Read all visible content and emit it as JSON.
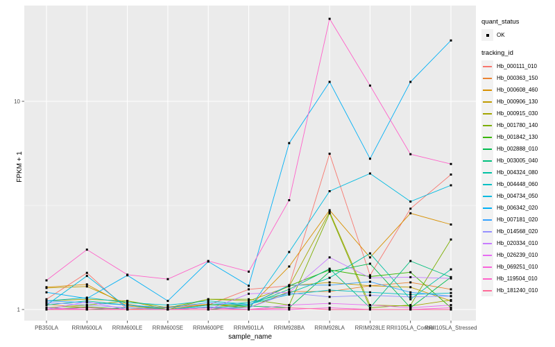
{
  "chart_data": {
    "type": "line",
    "title": "",
    "xlabel": "sample_name",
    "ylabel": "FPKM + 1",
    "y_scale": "log10",
    "y_ticks": [
      1,
      10
    ],
    "y_minor_ticks": [
      3.162
    ],
    "ylim": [
      0.885,
      28.9
    ],
    "grid": "on",
    "panel_bg": "#EBEBEB",
    "grid_color": "#FFFFFF",
    "tick_label_color": "#4D4D4D",
    "point_color": "#000000",
    "legend_position": "right",
    "legend": {
      "quant_status": {
        "title": "quant_status",
        "items": [
          {
            "label": "OK",
            "marker": "black-square-point"
          }
        ]
      },
      "tracking_id": {
        "title": "tracking_id"
      }
    },
    "categories": [
      "PB350LA",
      "RRIM600LA",
      "RRIM600LE",
      "RRIM600SE",
      "RRIM600PE",
      "RRIM901LA",
      "RRIM928BA",
      "RRIM928LA",
      "RRIM928LE",
      "RRII105LA_Control",
      "RRII105LA_Stressed"
    ],
    "series": [
      {
        "name": "Hb_000111_010",
        "color": "#F8766D",
        "values": [
          1.12,
          1.5,
          1.0,
          1.02,
          1.05,
          1.25,
          1.3,
          5.6,
          1.46,
          3.05,
          4.45
        ]
      },
      {
        "name": "Hb_000363_150",
        "color": "#EA8331",
        "values": [
          1.06,
          1.02,
          1.0,
          1.03,
          1.06,
          1.02,
          1.22,
          1.22,
          1.3,
          1.35,
          1.25
        ]
      },
      {
        "name": "Hb_000608_460",
        "color": "#D89000",
        "values": [
          1.28,
          1.32,
          1.04,
          1.0,
          1.06,
          1.02,
          1.61,
          3.0,
          1.78,
          2.9,
          2.56
        ]
      },
      {
        "name": "Hb_000906_130",
        "color": "#C09B00",
        "values": [
          1.27,
          1.29,
          1.06,
          1.0,
          1.02,
          1.05,
          1.3,
          1.35,
          1.3,
          1.28,
          1.1
        ]
      },
      {
        "name": "Hb_000915_030",
        "color": "#A3A500",
        "values": [
          1.1,
          1.12,
          1.1,
          1.0,
          1.12,
          1.1,
          1.29,
          2.95,
          1.05,
          1.04,
          1.11
        ]
      },
      {
        "name": "Hb_001780_140",
        "color": "#7CAE00",
        "values": [
          1.02,
          1.05,
          1.1,
          1.02,
          1.12,
          1.12,
          1.05,
          2.9,
          1.02,
          1.05,
          2.17
        ]
      },
      {
        "name": "Hb_001842_130",
        "color": "#39B600",
        "values": [
          1.0,
          1.03,
          1.0,
          1.0,
          1.05,
          1.05,
          1.3,
          1.55,
          1.44,
          1.51,
          1.02
        ]
      },
      {
        "name": "Hb_002888_010",
        "color": "#00BB4E",
        "values": [
          1.0,
          1.0,
          1.02,
          1.0,
          1.0,
          1.04,
          1.02,
          1.52,
          1.66,
          1.02,
          1.43
        ]
      },
      {
        "name": "Hb_003005_040",
        "color": "#00BF7D",
        "values": [
          1.02,
          1.0,
          1.0,
          1.0,
          1.02,
          1.05,
          1.25,
          1.57,
          1.02,
          1.71,
          1.43
        ]
      },
      {
        "name": "Hb_004324_080",
        "color": "#00C1A3",
        "values": [
          1.05,
          1.1,
          1.05,
          1.0,
          1.05,
          1.08,
          1.2,
          1.42,
          1.86,
          1.12,
          1.56
        ]
      },
      {
        "name": "Hb_004448_060",
        "color": "#00BFC4",
        "values": [
          1.1,
          1.14,
          1.08,
          1.05,
          1.1,
          1.06,
          1.18,
          1.24,
          1.21,
          1.18,
          1.2
        ]
      },
      {
        "name": "Hb_004734_050",
        "color": "#00BAE0",
        "values": [
          1.05,
          1.45,
          1.02,
          1.0,
          1.03,
          1.0,
          1.89,
          3.7,
          4.5,
          3.3,
          3.95
        ]
      },
      {
        "name": "Hb_006342_020",
        "color": "#00B0F6",
        "values": [
          1.21,
          1.13,
          1.46,
          1.1,
          1.7,
          1.3,
          6.3,
          12.4,
          5.3,
          12.4,
          19.6
        ]
      },
      {
        "name": "Hb_007181_020",
        "color": "#35A2FF",
        "values": [
          1.1,
          1.08,
          1.05,
          1.02,
          1.08,
          1.05,
          1.31,
          1.31,
          1.36,
          1.21,
          1.16
        ]
      },
      {
        "name": "Hb_014568_020",
        "color": "#9590FF",
        "values": [
          1.08,
          1.05,
          1.02,
          1.0,
          1.02,
          1.02,
          1.2,
          1.15,
          1.17,
          1.15,
          1.16
        ]
      },
      {
        "name": "Hb_020334_010",
        "color": "#C77CFF",
        "values": [
          1.0,
          1.09,
          1.0,
          1.0,
          1.0,
          1.19,
          1.21,
          1.78,
          1.42,
          1.43,
          1.41
        ]
      },
      {
        "name": "Hb_026239_010",
        "color": "#E76BF3",
        "values": [
          1.02,
          1.0,
          1.0,
          1.0,
          1.0,
          1.0,
          1.05,
          1.07,
          1.05,
          1.02,
          1.05
        ]
      },
      {
        "name": "Hb_069251_010",
        "color": "#FA62DB",
        "values": [
          1.0,
          1.02,
          1.0,
          1.0,
          1.02,
          1.0,
          1.0,
          1.02,
          1.0,
          1.0,
          1.02
        ]
      },
      {
        "name": "Hb_119504_010",
        "color": "#FF61C9",
        "values": [
          1.38,
          1.94,
          1.47,
          1.4,
          1.71,
          1.52,
          3.35,
          24.9,
          11.9,
          5.57,
          5.0
        ]
      },
      {
        "name": "Hb_181240_010",
        "color": "#FF6A98",
        "values": [
          1.0,
          1.0,
          1.0,
          1.0,
          1.0,
          1.0,
          1.02,
          1.0,
          1.0,
          1.0,
          1.0
        ]
      }
    ]
  }
}
